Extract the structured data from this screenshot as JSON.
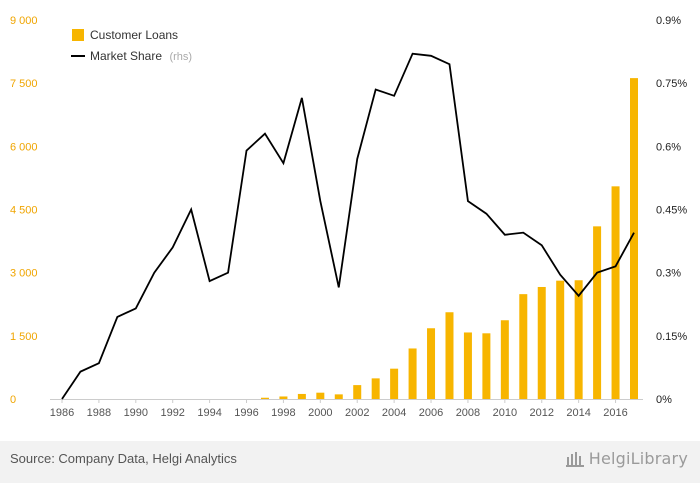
{
  "chart_data": {
    "type": "bar",
    "x": [
      "1986",
      "1987",
      "1988",
      "1989",
      "1990",
      "1991",
      "1992",
      "1993",
      "1994",
      "1995",
      "1996",
      "1997",
      "1998",
      "1999",
      "2000",
      "2001",
      "2002",
      "2003",
      "2004",
      "2005",
      "2006",
      "2007",
      "2008",
      "2009",
      "2010",
      "2011",
      "2012",
      "2013",
      "2014",
      "2015",
      "2016",
      "2017"
    ],
    "x_tick_labels": [
      "1986",
      "1988",
      "1990",
      "1992",
      "1994",
      "1996",
      "1998",
      "2000",
      "2002",
      "2004",
      "2006",
      "2008",
      "2010",
      "2012",
      "2014",
      "2016"
    ],
    "y_left_ticks": [
      "0",
      "1 500",
      "3 000",
      "4 500",
      "6 000",
      "7 500",
      "9 000"
    ],
    "y_right_ticks": [
      "0%",
      "0.15%",
      "0.3%",
      "0.45%",
      "0.6%",
      "0.75%",
      "0.9%"
    ],
    "ylim_left": [
      0,
      9000
    ],
    "ylim_right": [
      0,
      0.9
    ],
    "series": [
      {
        "name": "Customer Loans",
        "type": "bar",
        "axis": "left",
        "color": "#f7b500",
        "values": [
          0,
          0,
          0,
          0,
          0,
          0,
          0,
          0,
          0,
          0,
          0,
          30,
          60,
          120,
          150,
          110,
          330,
          490,
          720,
          1200,
          1680,
          2060,
          1580,
          1560,
          1870,
          2490,
          2660,
          2810,
          2820,
          4100,
          5050,
          7620
        ]
      },
      {
        "name": "Market Share",
        "name_suffix": "(rhs)",
        "type": "line",
        "axis": "right",
        "color": "#000000",
        "values": [
          0.0,
          0.065,
          0.085,
          0.195,
          0.215,
          0.3,
          0.36,
          0.45,
          0.28,
          0.3,
          0.59,
          0.63,
          0.56,
          0.715,
          0.47,
          0.265,
          0.57,
          0.735,
          0.72,
          0.82,
          0.815,
          0.795,
          0.47,
          0.44,
          0.39,
          0.395,
          0.365,
          0.295,
          0.245,
          0.3,
          0.315,
          0.395
        ]
      }
    ],
    "grid": false,
    "legend_position": "top-left"
  },
  "footer": {
    "source": "Source: Company Data, Helgi Analytics",
    "logo_text": "HelgiLibrary"
  }
}
